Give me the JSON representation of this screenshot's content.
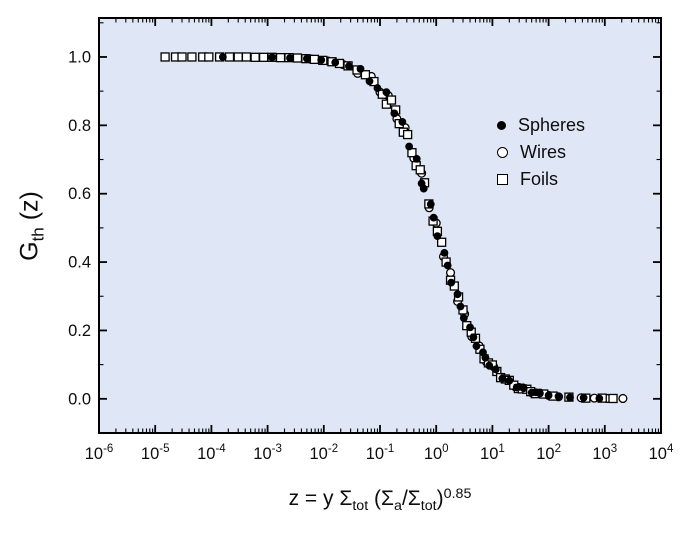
{
  "figure": {
    "background": "#ffffff",
    "plot_background": "#DFE7F6",
    "frame_color": "#000000",
    "text_color": "#0d0d0d"
  },
  "legend": {
    "items": [
      {
        "label": "Spheres",
        "marker": "filled-circle"
      },
      {
        "label": "Wires",
        "marker": "open-circle"
      },
      {
        "label": "Foils",
        "marker": "open-square"
      }
    ]
  },
  "ylabel_parts": [
    {
      "t": "G",
      "s": "n"
    },
    {
      "t": "th",
      "s": "sub"
    },
    {
      "t": " (z)",
      "s": "n"
    }
  ],
  "xlabel_parts": [
    {
      "t": "z = y ",
      "s": "n"
    },
    {
      "t": "Σ",
      "s": "n"
    },
    {
      "t": "tot",
      "s": "sub"
    },
    {
      "t": " (Σ",
      "s": "n"
    },
    {
      "t": "a",
      "s": "sub"
    },
    {
      "t": "/Σ",
      "s": "n"
    },
    {
      "t": "tot",
      "s": "sub"
    },
    {
      "t": ")",
      "s": "n"
    },
    {
      "t": "0.85",
      "s": "sup"
    }
  ],
  "chart_data": {
    "type": "scatter",
    "title": "",
    "xlabel": "z = y Σ_tot (Σ_a/Σ_tot)^0.85",
    "ylabel": "G_th (z)",
    "x_scale": "log",
    "xlim": [
      1e-06,
      10000.0
    ],
    "ylim": [
      -0.1,
      1.114
    ],
    "x_tick_exponents": [
      -6,
      -5,
      -4,
      -3,
      -2,
      -1,
      0,
      1,
      2,
      3,
      4
    ],
    "y_ticks": [
      "0.0",
      "0.2",
      "0.4",
      "0.6",
      "0.8",
      "1.0"
    ],
    "y_tick_values": [
      0.0,
      0.2,
      0.4,
      0.6,
      0.8,
      1.0
    ],
    "y_minor_ticks": [
      0.1,
      0.3,
      0.5,
      0.7,
      0.9,
      1.1
    ],
    "grid": false,
    "legend_position": "upper-right-inside",
    "series": [
      {
        "name": "Wires",
        "marker": "open-circle",
        "color": "#000000",
        "points": [
          [
            0.001,
            0.999
          ],
          [
            0.003,
            0.997
          ],
          [
            0.006,
            0.994
          ],
          [
            0.012,
            0.988
          ],
          [
            0.022,
            0.978
          ],
          [
            0.04,
            0.952
          ],
          [
            0.07,
            0.943
          ],
          [
            0.1,
            0.897
          ],
          [
            0.14,
            0.887
          ],
          [
            0.2,
            0.819
          ],
          [
            0.28,
            0.793
          ],
          [
            0.4,
            0.704
          ],
          [
            0.55,
            0.66
          ],
          [
            0.75,
            0.559
          ],
          [
            1.0,
            0.514
          ],
          [
            1.35,
            0.416
          ],
          [
            1.8,
            0.369
          ],
          [
            2.4,
            0.285
          ],
          [
            3.2,
            0.248
          ],
          [
            4.3,
            0.182
          ],
          [
            5.8,
            0.155
          ],
          [
            7.8,
            0.108
          ],
          [
            10.5,
            0.094
          ],
          [
            14,
            0.063
          ],
          [
            19,
            0.055
          ],
          [
            26,
            0.034
          ],
          [
            35,
            0.032
          ],
          [
            50,
            0.018
          ],
          [
            70,
            0.017
          ],
          [
            100,
            0.01
          ],
          [
            150,
            0.006
          ],
          [
            230,
            0.005
          ],
          [
            380,
            0.003
          ],
          [
            650,
            0.002
          ],
          [
            1100,
            0.001
          ],
          [
            2100,
            0.001
          ]
        ]
      },
      {
        "name": "Foils",
        "marker": "open-square",
        "color": "#000000",
        "points": [
          [
            1.5e-05,
            1.0
          ],
          [
            2.3e-05,
            1.0
          ],
          [
            3e-05,
            1.0
          ],
          [
            4.5e-05,
            1.0
          ],
          [
            7e-05,
            1.0
          ],
          [
            9e-05,
            1.0
          ],
          [
            0.00014,
            1.0
          ],
          [
            0.00021,
            1.0
          ],
          [
            0.0003,
            1.0
          ],
          [
            0.00042,
            1.0
          ],
          [
            0.0006,
            0.999
          ],
          [
            0.00085,
            0.999
          ],
          [
            0.0012,
            0.999
          ],
          [
            0.0017,
            0.998
          ],
          [
            0.0024,
            0.998
          ],
          [
            0.0034,
            0.997
          ],
          [
            0.0048,
            0.995
          ],
          [
            0.0068,
            0.993
          ],
          [
            0.0096,
            0.99
          ],
          [
            0.014,
            0.986
          ],
          [
            0.019,
            0.981
          ],
          [
            0.027,
            0.974
          ],
          [
            0.039,
            0.962
          ],
          [
            0.055,
            0.948
          ],
          [
            0.078,
            0.928
          ],
          [
            0.11,
            0.891
          ],
          [
            0.13,
            0.862
          ],
          [
            0.16,
            0.874
          ],
          [
            0.19,
            0.845
          ],
          [
            0.22,
            0.805
          ],
          [
            0.26,
            0.78
          ],
          [
            0.31,
            0.773
          ],
          [
            0.37,
            0.72
          ],
          [
            0.44,
            0.682
          ],
          [
            0.52,
            0.67
          ],
          [
            0.62,
            0.632
          ],
          [
            0.74,
            0.57
          ],
          [
            0.88,
            0.52
          ],
          [
            1.05,
            0.49
          ],
          [
            1.25,
            0.458
          ],
          [
            1.5,
            0.4
          ],
          [
            1.8,
            0.347
          ],
          [
            2.1,
            0.33
          ],
          [
            2.5,
            0.298
          ],
          [
            3.0,
            0.26
          ],
          [
            3.5,
            0.214
          ],
          [
            4.2,
            0.195
          ],
          [
            5.0,
            0.177
          ],
          [
            6.0,
            0.145
          ],
          [
            7.1,
            0.117
          ],
          [
            8.5,
            0.105
          ],
          [
            10,
            0.099
          ],
          [
            12,
            0.08
          ],
          [
            14,
            0.062
          ],
          [
            17,
            0.058
          ],
          [
            20,
            0.054
          ],
          [
            24,
            0.04
          ],
          [
            29,
            0.03
          ],
          [
            34,
            0.029
          ],
          [
            41,
            0.028
          ],
          [
            48,
            0.021
          ],
          [
            58,
            0.015
          ],
          [
            82,
            0.014
          ],
          [
            120,
            0.008
          ],
          [
            230,
            0.005
          ],
          [
            460,
            0.002
          ],
          [
            900,
            0.002
          ],
          [
            1400,
            0.001
          ]
        ]
      },
      {
        "name": "Spheres",
        "marker": "filled-circle",
        "color": "#000000",
        "points": [
          [
            0.00016,
            1.0
          ],
          [
            0.0012,
            0.999
          ],
          [
            0.0025,
            0.997
          ],
          [
            0.005,
            0.995
          ],
          [
            0.009,
            0.991
          ],
          [
            0.016,
            0.984
          ],
          [
            0.028,
            0.973
          ],
          [
            0.045,
            0.965
          ],
          [
            0.065,
            0.929
          ],
          [
            0.09,
            0.909
          ],
          [
            0.13,
            0.897
          ],
          [
            0.18,
            0.835
          ],
          [
            0.25,
            0.81
          ],
          [
            0.33,
            0.738
          ],
          [
            0.45,
            0.702
          ],
          [
            0.55,
            0.63
          ],
          [
            0.6,
            0.615
          ],
          [
            0.8,
            0.569
          ],
          [
            0.9,
            0.53
          ],
          [
            1.05,
            0.476
          ],
          [
            1.4,
            0.427
          ],
          [
            1.6,
            0.39
          ],
          [
            1.85,
            0.34
          ],
          [
            2.4,
            0.306
          ],
          [
            2.7,
            0.27
          ],
          [
            3.1,
            0.236
          ],
          [
            4.0,
            0.209
          ],
          [
            4.6,
            0.18
          ],
          [
            5.2,
            0.154
          ],
          [
            6.8,
            0.136
          ],
          [
            7.5,
            0.12
          ],
          [
            8.8,
            0.097
          ],
          [
            11.5,
            0.086
          ],
          [
            15,
            0.059
          ],
          [
            20,
            0.053
          ],
          [
            27,
            0.033
          ],
          [
            30,
            0.035
          ],
          [
            36,
            0.031
          ],
          [
            50,
            0.018
          ],
          [
            60,
            0.019
          ],
          [
            70,
            0.016
          ],
          [
            100,
            0.01
          ],
          [
            150,
            0.007
          ],
          [
            240,
            0.004
          ],
          [
            420,
            0.003
          ],
          [
            800,
            0.001
          ]
        ]
      }
    ]
  }
}
